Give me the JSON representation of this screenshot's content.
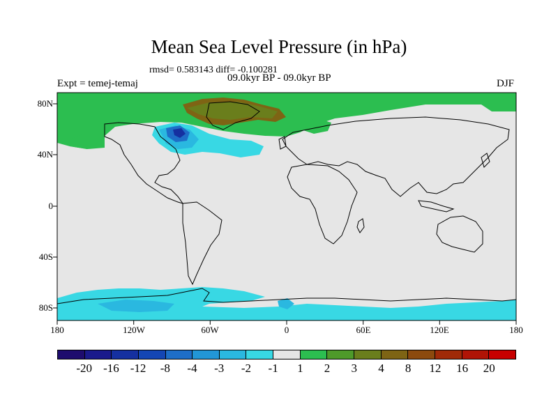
{
  "header": {
    "title": "Mean Sea Level Pressure (in hPa)",
    "stats": "rmsd= 0.583143 diff= -0.100281",
    "period": "09.0kyr BP - 09.0kyr BP",
    "experiment": "Expt = temej-temaj",
    "season": "DJF"
  },
  "axes": {
    "lat_labels": [
      "80N",
      "40N",
      "0",
      "40S",
      "80S"
    ],
    "lon_labels": [
      "180",
      "120W",
      "60W",
      "0",
      "60E",
      "120E",
      "180"
    ]
  },
  "colorbar": {
    "colors": [
      "#1e0c6e",
      "#1a1a8c",
      "#1530a0",
      "#1446b4",
      "#1e6ec8",
      "#2296d6",
      "#2ab8e0",
      "#38d8e4",
      "#e6e6e6",
      "#2cbe50",
      "#4e9a2a",
      "#6a7e1c",
      "#7e6414",
      "#8c4a0e",
      "#a02a08",
      "#b01406",
      "#c80000"
    ],
    "labels": [
      "-20",
      "-16",
      "-12",
      "-8",
      "-4",
      "-3",
      "-2",
      "-1",
      "1",
      "2",
      "3",
      "4",
      "8",
      "12",
      "16",
      "20"
    ]
  },
  "map": {
    "background": "#e6e6e6",
    "green": "#2cbe50",
    "olive": "#6a7e1c",
    "brown": "#7e6414",
    "cyan": "#38d8e4",
    "sky": "#2ab8e0",
    "blue": "#1e6ec8",
    "navy": "#1530a0"
  }
}
